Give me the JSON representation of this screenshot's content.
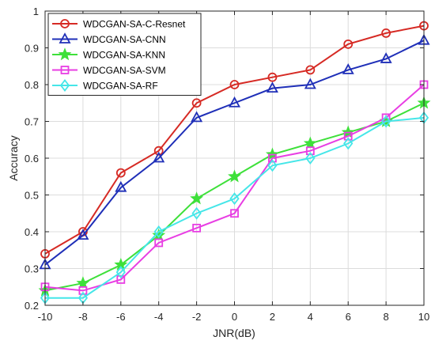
{
  "chart_data": {
    "type": "line",
    "title": "",
    "xlabel": "JNR(dB)",
    "ylabel": "Accuracy",
    "x": [
      -10,
      -8,
      -6,
      -4,
      -2,
      0,
      2,
      4,
      6,
      8,
      10
    ],
    "xlim": [
      -10,
      10
    ],
    "ylim": [
      0.2,
      1.0
    ],
    "xticks": [
      "-10",
      "-8",
      "-6",
      "-4",
      "-2",
      "0",
      "2",
      "4",
      "6",
      "8",
      "10"
    ],
    "yticks": [
      "0.2",
      "0.3",
      "0.4",
      "0.5",
      "0.6",
      "0.7",
      "0.8",
      "0.9",
      "1"
    ],
    "grid": true,
    "legend_position": "top-left",
    "series": [
      {
        "name": "WDCGAN-SA-C-Resnet",
        "color": "#d62a24",
        "marker": "circle",
        "values": [
          0.34,
          0.4,
          0.56,
          0.62,
          0.75,
          0.8,
          0.82,
          0.84,
          0.91,
          0.94,
          0.96
        ]
      },
      {
        "name": "WDCGAN-SA-CNN",
        "color": "#1f2fb8",
        "marker": "triangle",
        "values": [
          0.31,
          0.39,
          0.52,
          0.6,
          0.71,
          0.75,
          0.79,
          0.8,
          0.84,
          0.87,
          0.92
        ]
      },
      {
        "name": "WDCGAN-SA-KNN",
        "color": "#3ee03a",
        "marker": "star",
        "values": [
          0.24,
          0.26,
          0.31,
          0.39,
          0.49,
          0.55,
          0.61,
          0.64,
          0.67,
          0.7,
          0.75
        ]
      },
      {
        "name": "WDCGAN-SA-SVM",
        "color": "#e83ee3",
        "marker": "square",
        "values": [
          0.25,
          0.24,
          0.27,
          0.37,
          0.41,
          0.45,
          0.6,
          0.62,
          0.66,
          0.71,
          0.8
        ]
      },
      {
        "name": "WDCGAN-SA-RF",
        "color": "#45e6e8",
        "marker": "diamond",
        "values": [
          0.22,
          0.22,
          0.29,
          0.4,
          0.45,
          0.49,
          0.58,
          0.6,
          0.64,
          0.7,
          0.71
        ]
      }
    ]
  }
}
